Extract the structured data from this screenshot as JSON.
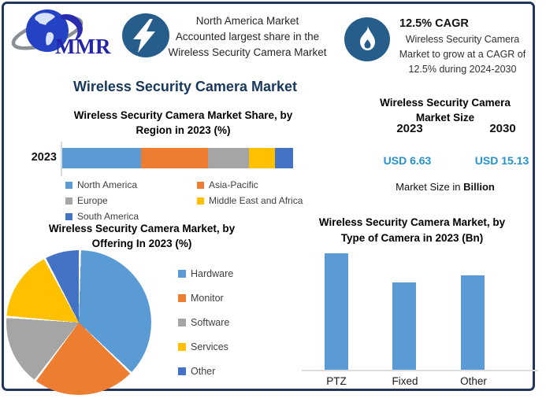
{
  "theme": {
    "navy": "#17375D",
    "frame_border": "#22365C",
    "icon_badge_blue": "#275D8B",
    "value_blue": "#2492CC",
    "axis_gray": "#D9D9D9",
    "series_palette": [
      "#5B9BD5",
      "#ED7D31",
      "#A5A5A5",
      "#FFC000",
      "#4472C4"
    ]
  },
  "logo": {
    "text": "MMR"
  },
  "callout_market_share": {
    "lines": [
      "North America Market",
      "Accounted largest share in the",
      "Wireless Security Camera Market"
    ]
  },
  "callout_cagr": {
    "heading": "12.5% CAGR",
    "lines": [
      "Wireless Security Camera",
      "Market to grow at a CAGR of",
      "12.5% during 2024-2030"
    ]
  },
  "main_title": "Wireless Security Camera Market",
  "market_size": {
    "title_lines": [
      "Wireless Security Camera",
      "Market Size"
    ],
    "year_left": "2023",
    "year_right": "2030",
    "value_left": "USD 6.63",
    "value_right": "USD 15.13",
    "footnote_regular": "Market Size in ",
    "footnote_bold": "Billion"
  },
  "chart_data": [
    {
      "type": "bar",
      "subtype": "horizontal-stacked",
      "title": "Wireless Security Camera Market Share, by Region in 2023 (%)",
      "title_lines": [
        "Wireless Security Camera Market Share, by",
        "Region in 2023 (%)"
      ],
      "categories": [
        "2023"
      ],
      "unit": "%",
      "xlim": [
        0,
        100
      ],
      "legend_position": "bottom",
      "series": [
        {
          "name": "North America",
          "value": 34,
          "color": "#5B9BD5"
        },
        {
          "name": "Asia-Pacific",
          "value": 29,
          "color": "#ED7D31"
        },
        {
          "name": "Europe",
          "value": 18,
          "color": "#A5A5A5"
        },
        {
          "name": "Middle East and Africa",
          "value": 11,
          "color": "#FFC000"
        },
        {
          "name": "South America",
          "value": 8,
          "color": "#4472C4"
        }
      ]
    },
    {
      "type": "pie",
      "title": "Wireless Security Camera Market, by Offering In 2023 (%)",
      "title_lines": [
        "Wireless Security Camera Market, by",
        "Offering In 2023 (%)"
      ],
      "unit": "%",
      "start_angle_deg": 0,
      "direction": "clockwise",
      "legend_position": "right",
      "series": [
        {
          "name": "Hardware",
          "value": 37,
          "color": "#5B9BD5"
        },
        {
          "name": "Monitor",
          "value": 23,
          "color": "#ED7D31"
        },
        {
          "name": "Software",
          "value": 16,
          "color": "#A5A5A5"
        },
        {
          "name": "Services",
          "value": 16,
          "color": "#FFC000"
        },
        {
          "name": "Other",
          "value": 8,
          "color": "#4472C4"
        }
      ]
    },
    {
      "type": "bar",
      "subtype": "vertical",
      "title": "Wireless Security Camera Market, by Type of Camera in 2023 (Bn)",
      "title_lines": [
        "Wireless Security Camera Market, by",
        "Type of Camera in 2023 (Bn)"
      ],
      "categories": [
        "PTZ",
        "Fixed",
        "Other"
      ],
      "values": [
        2.6,
        1.95,
        2.1
      ],
      "unit": "Bn",
      "ylim": [
        0,
        2.75
      ],
      "grid": false,
      "bar_color": "#5B9BD5"
    }
  ]
}
